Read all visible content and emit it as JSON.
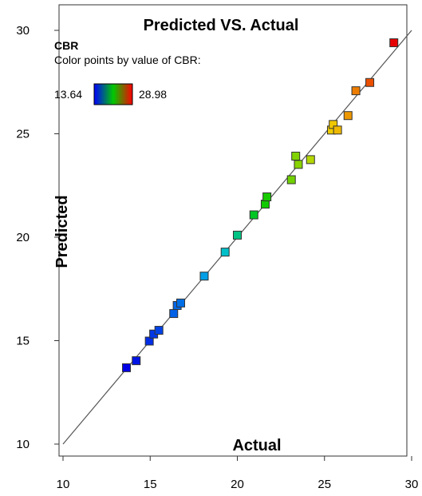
{
  "chart_data": {
    "type": "scatter",
    "title": "Predicted VS. Actual",
    "xlabel": "Actual",
    "ylabel": "Predicted",
    "xlim": [
      10,
      30
    ],
    "ylim": [
      10,
      30
    ],
    "x_ticks": [
      "10",
      "15",
      "20",
      "25",
      "30"
    ],
    "y_ticks": [
      "10",
      "15",
      "20",
      "25",
      "30"
    ],
    "grid": false,
    "legend": {
      "name": "CBR",
      "description": "Color points by value of CBR:",
      "min_label": "13.64",
      "max_label": "28.98",
      "min": 13.64,
      "max": 28.98,
      "placement": "top-left"
    },
    "reference_line": {
      "from": [
        10,
        10
      ],
      "to": [
        30,
        30
      ]
    },
    "points": [
      {
        "x": 13.64,
        "y": 13.69
      },
      {
        "x": 14.2,
        "y": 14.03
      },
      {
        "x": 14.95,
        "y": 14.98
      },
      {
        "x": 15.2,
        "y": 15.32
      },
      {
        "x": 15.5,
        "y": 15.5
      },
      {
        "x": 16.35,
        "y": 16.31
      },
      {
        "x": 16.55,
        "y": 16.7
      },
      {
        "x": 16.75,
        "y": 16.82
      },
      {
        "x": 18.1,
        "y": 18.12
      },
      {
        "x": 19.3,
        "y": 19.28
      },
      {
        "x": 20.0,
        "y": 20.1
      },
      {
        "x": 20.95,
        "y": 21.08
      },
      {
        "x": 21.6,
        "y": 21.6
      },
      {
        "x": 21.7,
        "y": 21.95
      },
      {
        "x": 23.1,
        "y": 22.78
      },
      {
        "x": 23.35,
        "y": 23.92
      },
      {
        "x": 23.5,
        "y": 23.52
      },
      {
        "x": 24.2,
        "y": 23.75
      },
      {
        "x": 25.4,
        "y": 25.18
      },
      {
        "x": 25.5,
        "y": 25.45
      },
      {
        "x": 25.75,
        "y": 25.18
      },
      {
        "x": 26.35,
        "y": 25.88
      },
      {
        "x": 26.8,
        "y": 27.08
      },
      {
        "x": 27.6,
        "y": 27.48
      },
      {
        "x": 28.98,
        "y": 29.4
      }
    ]
  }
}
